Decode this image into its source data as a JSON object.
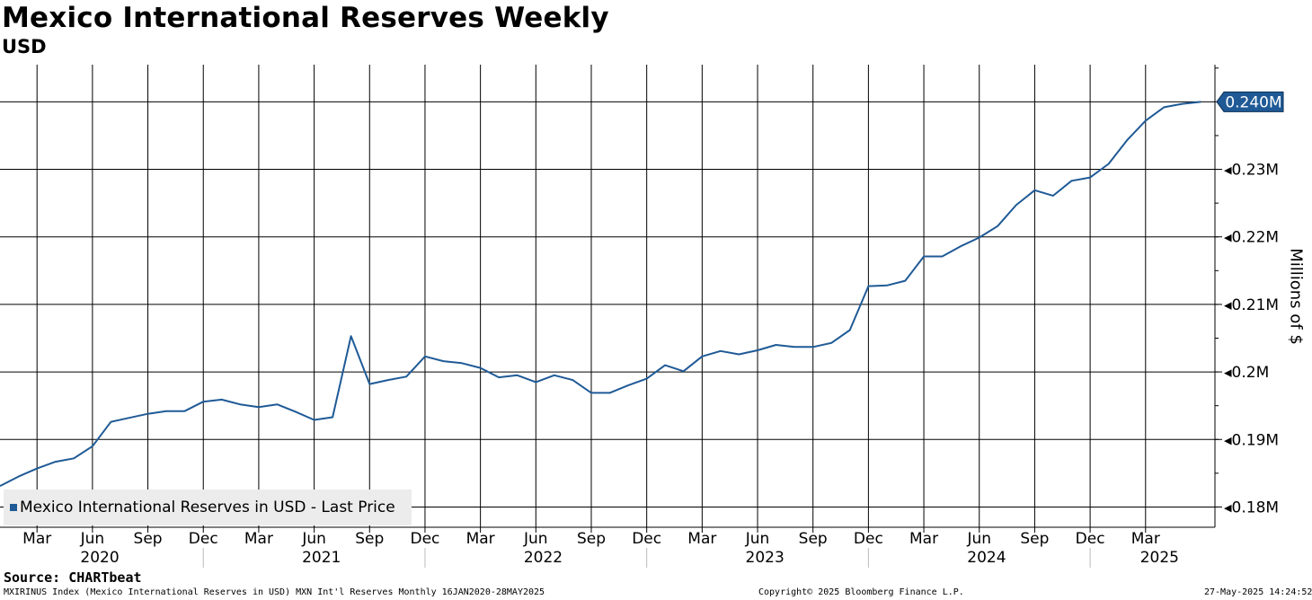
{
  "chart_data": {
    "type": "line",
    "title": "Mexico International Reserves Weekly",
    "subtitle": "USD",
    "ylabel": "Millions of $",
    "ylim": [
      0.177,
      0.2455
    ],
    "yticks": [
      0.18,
      0.19,
      0.2,
      0.21,
      0.22,
      0.23
    ],
    "ytick_labels": [
      "0.18M",
      "0.19M",
      "0.2M",
      "0.21M",
      "0.22M",
      "0.23M"
    ],
    "xlim": [
      2020.0,
      2025.48
    ],
    "month_ticks": [
      {
        "label": "Mar",
        "t": 2020.167
      },
      {
        "label": "Jun",
        "t": 2020.417
      },
      {
        "label": "Sep",
        "t": 2020.667
      },
      {
        "label": "Dec",
        "t": 2020.917
      },
      {
        "label": "Mar",
        "t": 2021.167
      },
      {
        "label": "Jun",
        "t": 2021.417
      },
      {
        "label": "Sep",
        "t": 2021.667
      },
      {
        "label": "Dec",
        "t": 2021.917
      },
      {
        "label": "Mar",
        "t": 2022.167
      },
      {
        "label": "Jun",
        "t": 2022.417
      },
      {
        "label": "Sep",
        "t": 2022.667
      },
      {
        "label": "Dec",
        "t": 2022.917
      },
      {
        "label": "Mar",
        "t": 2023.167
      },
      {
        "label": "Jun",
        "t": 2023.417
      },
      {
        "label": "Sep",
        "t": 2023.667
      },
      {
        "label": "Dec",
        "t": 2023.917
      },
      {
        "label": "Mar",
        "t": 2024.167
      },
      {
        "label": "Jun",
        "t": 2024.417
      },
      {
        "label": "Sep",
        "t": 2024.667
      },
      {
        "label": "Dec",
        "t": 2024.917
      },
      {
        "label": "Mar",
        "t": 2025.167
      }
    ],
    "year_labels": [
      {
        "label": "2020",
        "t": 2020.45
      },
      {
        "label": "2021",
        "t": 2021.45
      },
      {
        "label": "2022",
        "t": 2022.45
      },
      {
        "label": "2023",
        "t": 2023.45
      },
      {
        "label": "2024",
        "t": 2024.45
      },
      {
        "label": "2025",
        "t": 2025.23
      }
    ],
    "year_separators": [
      2020.917,
      2021.917,
      2022.917,
      2023.917,
      2024.917
    ],
    "series": [
      {
        "name": "Mexico International Reserves in USD - Last Price",
        "color": "#1f5a96",
        "x": [
          2020.0,
          2020.083,
          2020.167,
          2020.25,
          2020.333,
          2020.417,
          2020.5,
          2020.583,
          2020.667,
          2020.75,
          2020.833,
          2020.917,
          2021.0,
          2021.083,
          2021.167,
          2021.25,
          2021.333,
          2021.417,
          2021.5,
          2021.583,
          2021.667,
          2021.75,
          2021.833,
          2021.917,
          2022.0,
          2022.083,
          2022.167,
          2022.25,
          2022.333,
          2022.417,
          2022.5,
          2022.583,
          2022.667,
          2022.75,
          2022.833,
          2022.917,
          2023.0,
          2023.083,
          2023.167,
          2023.25,
          2023.333,
          2023.417,
          2023.5,
          2023.583,
          2023.667,
          2023.75,
          2023.833,
          2023.917,
          2024.0,
          2024.083,
          2024.167,
          2024.25,
          2024.333,
          2024.417,
          2024.5,
          2024.583,
          2024.667,
          2024.75,
          2024.833,
          2024.917,
          2025.0,
          2025.083,
          2025.167,
          2025.25,
          2025.333,
          2025.417
        ],
        "values": [
          0.1831,
          0.1845,
          0.1857,
          0.1867,
          0.1872,
          0.189,
          0.1926,
          0.1932,
          0.1938,
          0.1942,
          0.1942,
          0.1956,
          0.1959,
          0.1952,
          0.1948,
          0.1952,
          0.1941,
          0.1929,
          0.1933,
          0.2053,
          0.1982,
          0.1988,
          0.1993,
          0.2023,
          0.2016,
          0.2013,
          0.2006,
          0.1992,
          0.1995,
          0.1985,
          0.1995,
          0.1988,
          0.1969,
          0.1969,
          0.198,
          0.199,
          0.201,
          0.2001,
          0.2023,
          0.2031,
          0.2026,
          0.2032,
          0.204,
          0.2037,
          0.2037,
          0.2043,
          0.2062,
          0.2127,
          0.2128,
          0.2135,
          0.2171,
          0.2171,
          0.2186,
          0.2199,
          0.2216,
          0.2247,
          0.2269,
          0.2261,
          0.2283,
          0.2288,
          0.2308,
          0.2343,
          0.2372,
          0.2392,
          0.2397,
          0.24
        ]
      }
    ],
    "last_value_label": "0.240M",
    "last_value": 0.24,
    "grid": true,
    "legend": "bottom-left"
  },
  "source": "Source: CHARTbeat",
  "footer": {
    "left": "MXIRINUS Index (Mexico International Reserves in USD) MXN Int'l Reserves  Monthly 16JAN2020-28MAY2025",
    "middle": "Copyright© 2025 Bloomberg Finance L.P.",
    "right": "27-May-2025 14:24:52"
  },
  "colors": {
    "line": "#1f5a96",
    "grid": "#000000",
    "badge": "#1f5a96"
  }
}
